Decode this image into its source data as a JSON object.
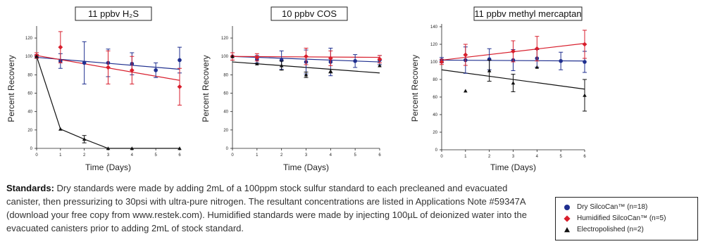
{
  "chart_data": [
    {
      "type": "line",
      "title": "11 ppbv H₂S",
      "xlabel": "Time (Days)",
      "ylabel": "Percent Recovery",
      "xlim": [
        0,
        6
      ],
      "ylim": [
        0,
        130
      ],
      "xticks": [
        0,
        1,
        2,
        3,
        4,
        5,
        6
      ],
      "yticks": [
        0,
        20,
        40,
        60,
        80,
        100,
        120
      ],
      "series": [
        {
          "name": "Dry SilcoCan™ (n=18)",
          "color": "#1f2f8f",
          "marker": "circle",
          "x": [
            0,
            1,
            2,
            3,
            4,
            5,
            6
          ],
          "y": [
            100,
            95,
            93,
            93,
            92,
            85,
            96
          ],
          "err": [
            2,
            8,
            23,
            15,
            12,
            8,
            14
          ],
          "trend": [
            [
              0,
              99
            ],
            [
              6,
              86
            ]
          ]
        },
        {
          "name": "Humidified SilcoCan™ (n=5)",
          "color": "#d81e2c",
          "marker": "diamond",
          "x": [
            0,
            1,
            3,
            4,
            6
          ],
          "y": [
            101,
            110,
            88,
            85,
            67
          ],
          "err": [
            3,
            17,
            18,
            15,
            20
          ],
          "trend": [
            [
              0,
              101
            ],
            [
              6,
              74
            ]
          ]
        },
        {
          "name": "Electropolished (n=2)",
          "color": "#111111",
          "marker": "triangle",
          "x": [
            0,
            1,
            2,
            3,
            4,
            6
          ],
          "y": [
            100,
            21,
            10,
            0,
            0,
            0
          ],
          "err": [
            0,
            0,
            4,
            0,
            0,
            0
          ],
          "connect": true
        }
      ]
    },
    {
      "type": "line",
      "title": "10 ppbv COS",
      "xlabel": "Time (Days)",
      "ylabel": "Percent Recovery",
      "xlim": [
        0,
        6
      ],
      "ylim": [
        0,
        130
      ],
      "xticks": [
        0,
        1,
        2,
        3,
        4,
        5,
        6
      ],
      "yticks": [
        0,
        20,
        40,
        60,
        80,
        100,
        120
      ],
      "series": [
        {
          "name": "Dry SilcoCan™ (n=18)",
          "color": "#1f2f8f",
          "marker": "circle",
          "x": [
            0,
            1,
            2,
            3,
            4,
            5,
            6
          ],
          "y": [
            100,
            97,
            96,
            94,
            94,
            95,
            96
          ],
          "err": [
            4,
            4,
            10,
            13,
            15,
            7,
            5
          ],
          "trend": [
            [
              0,
              100
            ],
            [
              6,
              94
            ]
          ]
        },
        {
          "name": "Humidified SilcoCan™ (n=5)",
          "color": "#d81e2c",
          "marker": "diamond",
          "x": [
            0,
            1,
            3,
            4,
            6
          ],
          "y": [
            100,
            99,
            100,
            98,
            97
          ],
          "err": [
            4,
            4,
            9,
            8,
            4
          ],
          "trend": [
            [
              0,
              100
            ],
            [
              6,
              99
            ]
          ]
        },
        {
          "name": "Electropolished (n=2)",
          "color": "#111111",
          "marker": "triangle",
          "x": [
            0,
            1,
            2,
            3,
            4,
            6
          ],
          "y": [
            100,
            92,
            90,
            80,
            84,
            90
          ],
          "err": [
            0,
            0,
            5,
            3,
            2,
            0
          ],
          "trend": [
            [
              0,
              94
            ],
            [
              6,
              82
            ]
          ]
        }
      ]
    },
    {
      "type": "line",
      "title": "11 ppbv methyl mercaptan",
      "xlabel": "Time (Days)",
      "ylabel": "Percent Recovery",
      "xlim": [
        0,
        6
      ],
      "ylim": [
        0,
        140
      ],
      "xticks": [
        0,
        1,
        2,
        3,
        4,
        5,
        6
      ],
      "yticks": [
        0,
        20,
        40,
        60,
        80,
        100,
        120,
        140
      ],
      "series": [
        {
          "name": "Dry SilcoCan™ (n=18)",
          "color": "#1f2f8f",
          "marker": "circle",
          "x": [
            0,
            1,
            2,
            3,
            4,
            5,
            6
          ],
          "y": [
            102,
            102,
            103,
            102,
            104,
            101,
            100
          ],
          "err": [
            3,
            15,
            12,
            12,
            10,
            10,
            12
          ],
          "trend": [
            [
              0,
              102
            ],
            [
              6,
              101
            ]
          ]
        },
        {
          "name": "Humidified SilcoCan™ (n=5)",
          "color": "#d81e2c",
          "marker": "diamond",
          "x": [
            0,
            1,
            3,
            4,
            6
          ],
          "y": [
            100,
            108,
            112,
            115,
            120
          ],
          "err": [
            3,
            12,
            12,
            14,
            16
          ],
          "trend": [
            [
              0,
              102
            ],
            [
              6,
              121
            ]
          ]
        },
        {
          "name": "Electropolished (n=2)",
          "color": "#111111",
          "marker": "triangle",
          "x": [
            1,
            2,
            3,
            4,
            6
          ],
          "y": [
            67,
            90,
            76,
            94,
            62
          ],
          "err": [
            0,
            12,
            10,
            0,
            18
          ],
          "trend": [
            [
              0,
              91
            ],
            [
              6,
              69
            ]
          ]
        }
      ]
    }
  ],
  "standards": {
    "lead": "Standards:",
    "text": " Dry standards were made by adding 2mL of a 100ppm stock sulfur standard to each precleaned and evacuated canister, then pressurizing to 30psi with ultra-pure nitrogen. The resultant concentrations are listed in Applications Note #59347A (download your free copy from www.restek.com). Humidified standards were made by injecting 100µL of deionized water into the evacuated canisters prior to adding 2mL of stock standard."
  },
  "legend": {
    "items": [
      {
        "label": "Dry SilcoCan™ (n=18)",
        "color": "#1f2f8f",
        "marker": "circle"
      },
      {
        "label": "Humidified SilcoCan™ (n=5)",
        "color": "#d81e2c",
        "marker": "diamond"
      },
      {
        "label": "Electropolished (n=2)",
        "color": "#111111",
        "marker": "triangle"
      }
    ]
  }
}
